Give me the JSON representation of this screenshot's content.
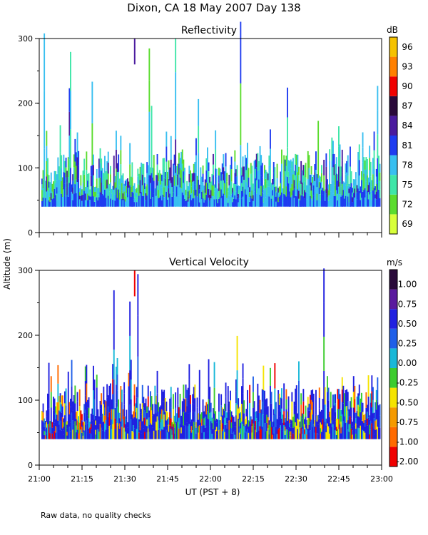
{
  "chart_data": {
    "type": "heatmap",
    "title": "Dixon, CA 18 May 2007  Day 138",
    "xlabel": "UT  (PST + 8)",
    "ylabel": "Altitude  (m)",
    "x_ticks": [
      "21:00",
      "21:15",
      "21:30",
      "21:45",
      "22:00",
      "22:15",
      "22:30",
      "22:45",
      "23:00"
    ],
    "x_range_minutes_after_2100": [
      0,
      120
    ],
    "note": "Raw data, no quality checks",
    "panels": [
      {
        "name": "Reflectivity",
        "unit": "dB",
        "ylim": [
          0,
          300
        ],
        "y_ticks": [
          "0",
          "100",
          "200",
          "300"
        ],
        "colorbar_labels": [
          "69",
          "72",
          "75",
          "78",
          "81",
          "84",
          "87",
          "90",
          "93",
          "96"
        ],
        "colorbar_colors": [
          "#d8ff3a",
          "#5bdc2e",
          "#3fe6a8",
          "#38bff0",
          "#1e3cf0",
          "#4a1b9e",
          "#2a0a3a",
          "#f00000",
          "#ff8000",
          "#f5c200"
        ],
        "data_floor_m": 40,
        "typical_echo_top_m": 120,
        "max_echo_top_m": 300
      },
      {
        "name": "Vertical Velocity",
        "unit": "m/s",
        "ylim": [
          0,
          300
        ],
        "y_ticks": [
          "0",
          "100",
          "200",
          "300"
        ],
        "colorbar_labels": [
          "1.00",
          "0.75",
          "0.50",
          "0.25",
          "0.00",
          "-0.25",
          "-0.50",
          "-0.75",
          "-1.00",
          "-2.00"
        ],
        "colorbar_colors": [
          "#f00000",
          "#ff6a00",
          "#f59a00",
          "#f5e400",
          "#3ccc2e",
          "#19b8d8",
          "#1f5fe8",
          "#2020e0",
          "#5a1a9e",
          "#2a0a3a"
        ],
        "data_floor_m": 40,
        "typical_echo_top_m": 120,
        "max_echo_top_m": 300
      }
    ]
  }
}
